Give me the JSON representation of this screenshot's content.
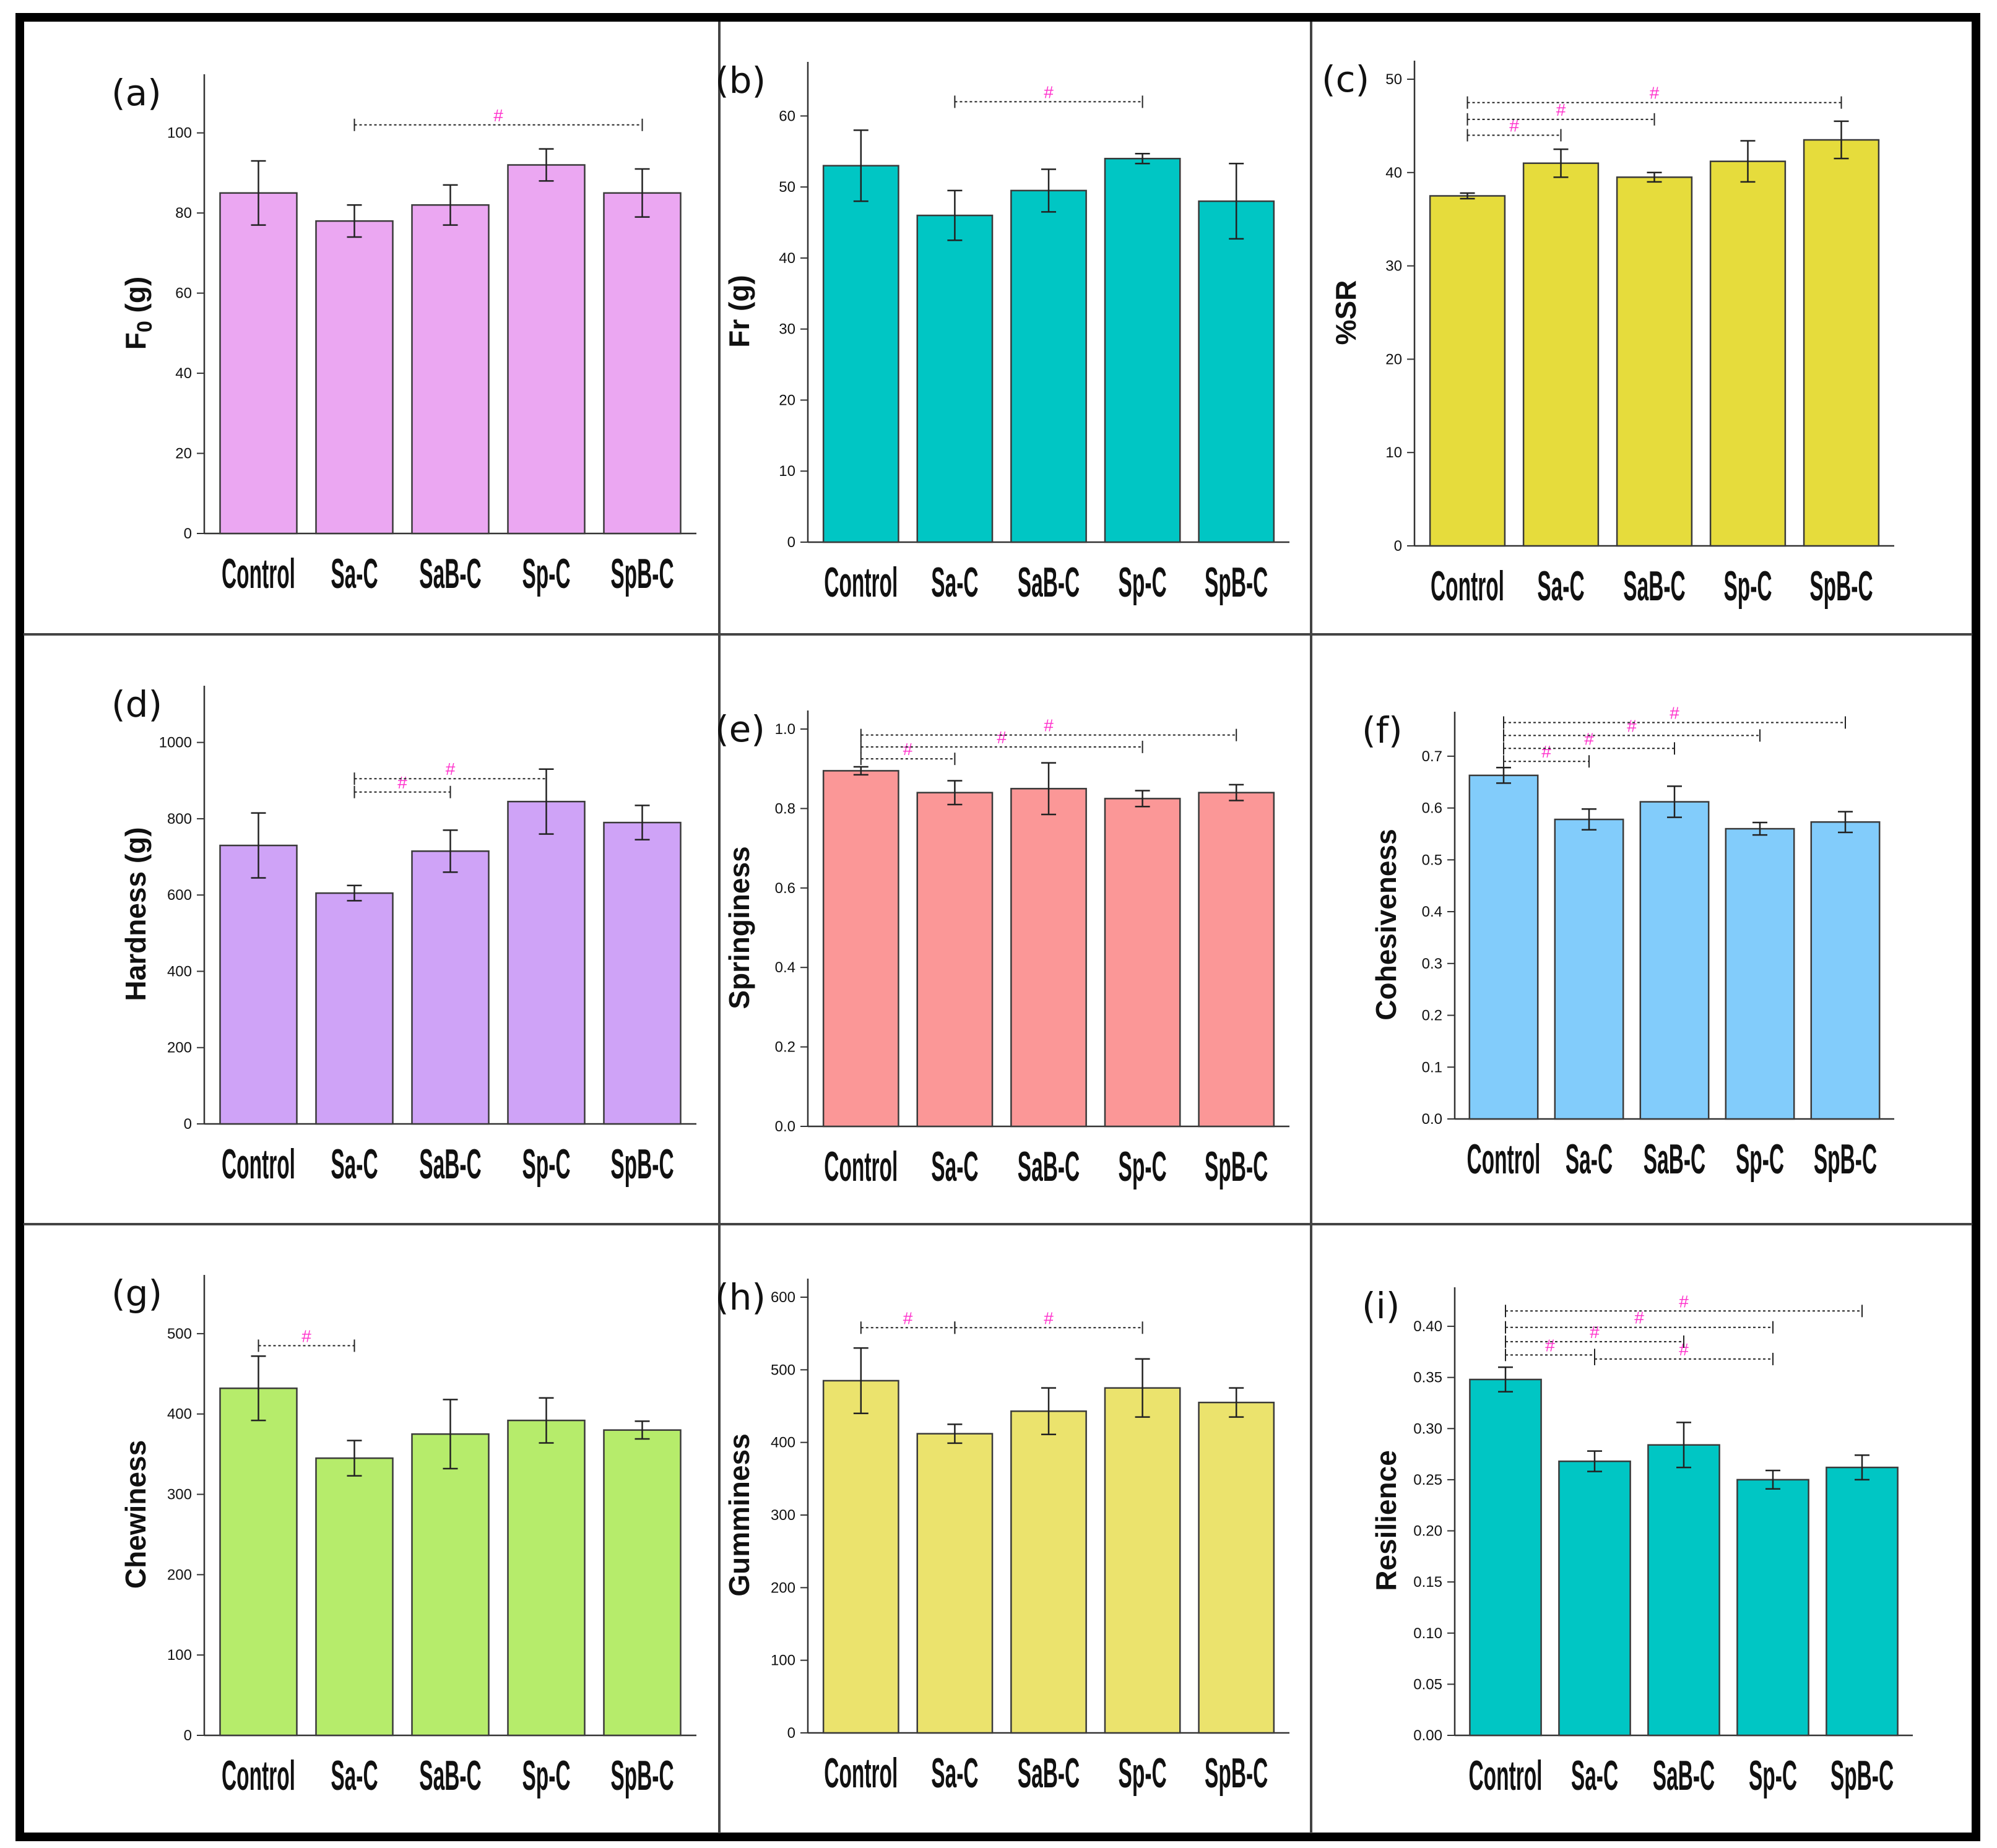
{
  "figure": {
    "colors": {
      "frame": "#000000",
      "divider": "#444444",
      "axis": "#333333",
      "significance": "#ff33cc"
    }
  },
  "chart_data": [
    {
      "id": "a",
      "type": "bar",
      "panel_label": "(a)",
      "ylabel": "F0 (g)",
      "ylabel_base": "F",
      "ylabel_sub": "0",
      "ylabel_rest": " (g)",
      "categories": [
        "Control",
        "Sa-C",
        "SaB-C",
        "Sp-C",
        "SpB-C"
      ],
      "values": [
        85,
        78,
        82,
        92,
        85
      ],
      "errors": [
        8,
        4,
        5,
        4,
        6
      ],
      "ylim": [
        0,
        110
      ],
      "yticks": [
        0,
        20,
        40,
        60,
        80,
        100
      ],
      "tick_decimals": 0,
      "color": "#eba7f2",
      "significance": [
        {
          "from": 1,
          "to": 4,
          "y": 102,
          "mark": "#"
        }
      ]
    },
    {
      "id": "b",
      "type": "bar",
      "panel_label": "(b)",
      "ylabel": "Fr (g)",
      "categories": [
        "Control",
        "Sa-C",
        "SaB-C",
        "Sp-C",
        "SpB-C"
      ],
      "values": [
        53,
        46,
        49.5,
        54,
        48
      ],
      "errors": [
        5,
        3.5,
        3,
        0.7,
        5.3
      ],
      "ylim": [
        0,
        65
      ],
      "yticks": [
        0,
        10,
        20,
        30,
        40,
        50,
        60
      ],
      "tick_decimals": 0,
      "color": "#00c6c4",
      "significance": [
        {
          "from": 1,
          "to": 3,
          "y": 62,
          "mark": "#"
        }
      ]
    },
    {
      "id": "c",
      "type": "bar",
      "panel_label": "(c)",
      "ylabel": "%SR",
      "categories": [
        "Control",
        "Sa-C",
        "SaB-C",
        "Sp-C",
        "SpB-C"
      ],
      "values": [
        37.5,
        41,
        39.5,
        41.2,
        43.5
      ],
      "errors": [
        0.3,
        1.5,
        0.5,
        2.2,
        2
      ],
      "ylim": [
        0,
        50
      ],
      "yticks": [
        0,
        10,
        20,
        30,
        40,
        50
      ],
      "tick_decimals": 0,
      "color": "#e6dc3c",
      "significance": [
        {
          "from": 0,
          "to": 1,
          "y": 44,
          "mark": "#"
        },
        {
          "from": 0,
          "to": 2,
          "y": 45.7,
          "mark": "#"
        },
        {
          "from": 0,
          "to": 4,
          "y": 47.5,
          "mark": "#"
        }
      ]
    },
    {
      "id": "d",
      "type": "bar",
      "panel_label": "(d)",
      "ylabel": "Hardness (g)",
      "categories": [
        "Control",
        "Sa-C",
        "SaB-C",
        "Sp-C",
        "SpB-C"
      ],
      "values": [
        730,
        605,
        715,
        845,
        790
      ],
      "errors": [
        85,
        20,
        55,
        85,
        45
      ],
      "ylim": [
        0,
        1100
      ],
      "yticks": [
        0,
        200,
        400,
        600,
        800,
        1000
      ],
      "tick_decimals": 0,
      "color": "#cfa3f7",
      "significance": [
        {
          "from": 1,
          "to": 2,
          "y": 870,
          "mark": "#"
        },
        {
          "from": 1,
          "to": 3,
          "y": 905,
          "mark": "#"
        }
      ]
    },
    {
      "id": "e",
      "type": "bar",
      "panel_label": "(e)",
      "ylabel": "Springiness",
      "categories": [
        "Control",
        "Sa-C",
        "SaB-C",
        "Sp-C",
        "SpB-C"
      ],
      "values": [
        0.895,
        0.84,
        0.85,
        0.825,
        0.84
      ],
      "errors": [
        0.01,
        0.03,
        0.065,
        0.02,
        0.02
      ],
      "ylim": [
        0,
        1.0
      ],
      "yticks": [
        0.0,
        0.2,
        0.4,
        0.6,
        0.8,
        1.0
      ],
      "tick_decimals": 1,
      "color": "#fb9797",
      "significance": [
        {
          "from": 0,
          "to": 1,
          "y": 0.925,
          "mark": "#"
        },
        {
          "from": 0,
          "to": 3,
          "y": 0.955,
          "mark": "#"
        },
        {
          "from": 0,
          "to": 4,
          "y": 0.985,
          "mark": "#"
        }
      ]
    },
    {
      "id": "f",
      "type": "bar",
      "panel_label": "(f)",
      "ylabel": "Cohesiveness",
      "categories": [
        "Control",
        "Sa-C",
        "SaB-C",
        "Sp-C",
        "SpB-C"
      ],
      "values": [
        0.663,
        0.578,
        0.612,
        0.56,
        0.573
      ],
      "errors": [
        0.015,
        0.02,
        0.03,
        0.012,
        0.02
      ],
      "ylim": [
        0,
        0.75
      ],
      "yticks": [
        0.0,
        0.1,
        0.2,
        0.3,
        0.4,
        0.5,
        0.6,
        0.7
      ],
      "tick_decimals": 1,
      "color": "#82ccfb",
      "significance": [
        {
          "from": 0,
          "to": 1,
          "y": 0.69,
          "mark": "#"
        },
        {
          "from": 0,
          "to": 2,
          "y": 0.715,
          "mark": "#"
        },
        {
          "from": 0,
          "to": 3,
          "y": 0.74,
          "mark": "#"
        },
        {
          "from": 0,
          "to": 4,
          "y": 0.765,
          "mark": "#"
        }
      ]
    },
    {
      "id": "g",
      "type": "bar",
      "panel_label": "(g)",
      "ylabel": "Chewiness",
      "categories": [
        "Control",
        "Sa-C",
        "SaB-C",
        "Sp-C",
        "SpB-C"
      ],
      "values": [
        432,
        345,
        375,
        392,
        380
      ],
      "errors": [
        40,
        22,
        43,
        28,
        11
      ],
      "ylim": [
        0,
        550
      ],
      "yticks": [
        0,
        100,
        200,
        300,
        400,
        500
      ],
      "tick_decimals": 0,
      "color": "#b6ec6b",
      "significance": [
        {
          "from": 0,
          "to": 1,
          "y": 485,
          "mark": "#"
        }
      ]
    },
    {
      "id": "h",
      "type": "bar",
      "panel_label": "(h)",
      "ylabel": "Gumminess",
      "categories": [
        "Control",
        "Sa-C",
        "SaB-C",
        "Sp-C",
        "SpB-C"
      ],
      "values": [
        485,
        412,
        443,
        475,
        455
      ],
      "errors": [
        45,
        13,
        32,
        40,
        20
      ],
      "ylim": [
        0,
        600
      ],
      "yticks": [
        0,
        100,
        200,
        300,
        400,
        500,
        600
      ],
      "tick_decimals": 0,
      "color": "#ebe36d",
      "significance": [
        {
          "from": 0,
          "to": 1,
          "y": 558,
          "mark": "#"
        },
        {
          "from": 1,
          "to": 3,
          "y": 558,
          "mark": "#"
        }
      ]
    },
    {
      "id": "i",
      "type": "bar",
      "panel_label": "(i)",
      "ylabel": "Resilience",
      "categories": [
        "Control",
        "Sa-C",
        "SaB-C",
        "Sp-C",
        "SpB-C"
      ],
      "values": [
        0.348,
        0.268,
        0.284,
        0.25,
        0.262
      ],
      "errors": [
        0.012,
        0.01,
        0.022,
        0.009,
        0.012
      ],
      "ylim": [
        0,
        0.42
      ],
      "yticks": [
        0.0,
        0.05,
        0.1,
        0.15,
        0.2,
        0.25,
        0.3,
        0.35,
        0.4
      ],
      "tick_decimals": 2,
      "color": "#00c6c4",
      "significance": [
        {
          "from": 0,
          "to": 1,
          "y": 0.372,
          "mark": "#"
        },
        {
          "from": 1,
          "to": 3,
          "y": 0.368,
          "mark": "#"
        },
        {
          "from": 0,
          "to": 2,
          "y": 0.385,
          "mark": "#"
        },
        {
          "from": 0,
          "to": 3,
          "y": 0.399,
          "mark": "#"
        },
        {
          "from": 0,
          "to": 4,
          "y": 0.415,
          "mark": "#"
        }
      ]
    }
  ]
}
